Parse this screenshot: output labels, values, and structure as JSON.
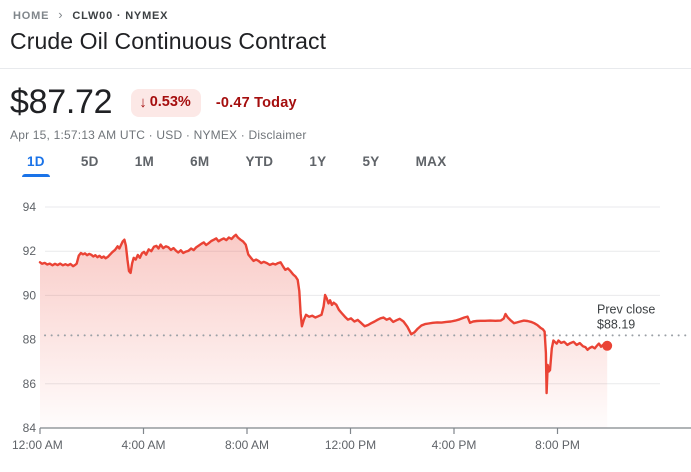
{
  "breadcrumb": {
    "home": "HOME",
    "separator": "›",
    "symbol": "CLW00 · NYMEX"
  },
  "header": {
    "title": "Crude Oil Continuous Contract"
  },
  "quote": {
    "price": "$87.72",
    "change_arrow": "↓",
    "change_percent": "0.53%",
    "change_amount": "-0.47 Today",
    "meta_text": "Apr 15, 1:57:13 AM UTC · USD · NYMEX · ",
    "disclaimer_label": "Disclaimer"
  },
  "tabs": [
    {
      "label": "1D",
      "active": true
    },
    {
      "label": "5D",
      "active": false
    },
    {
      "label": "1M",
      "active": false
    },
    {
      "label": "6M",
      "active": false
    },
    {
      "label": "YTD",
      "active": false
    },
    {
      "label": "1Y",
      "active": false
    },
    {
      "label": "5Y",
      "active": false
    },
    {
      "label": "MAX",
      "active": false
    }
  ],
  "colors": {
    "chart_line": "#ea4335",
    "accent_blue": "#1a73e8",
    "negative_red": "#a50e0e",
    "badge_bg": "#fce8e6",
    "gridline": "#e9eaec",
    "axis": "#80868b",
    "tick_text": "#5f6368",
    "annotation_text": "#3c4043",
    "dotted_line": "#9aa0a6"
  },
  "chart_data": {
    "type": "line",
    "name": "CLW00",
    "x_unit": "hours_since_midnight",
    "xlim": [
      0,
      24
    ],
    "ylim": [
      84,
      94
    ],
    "y_ticks": [
      94,
      92,
      90,
      88,
      86,
      84
    ],
    "gridline_values": [
      94,
      92,
      90,
      86
    ],
    "x_ticks": [
      {
        "hour": 0,
        "label": "12:00 AM"
      },
      {
        "hour": 4,
        "label": "4:00 AM"
      },
      {
        "hour": 8,
        "label": "8:00 AM"
      },
      {
        "hour": 12,
        "label": "12:00 PM"
      },
      {
        "hour": 16,
        "label": "4:00 PM"
      },
      {
        "hour": 20,
        "label": "8:00 PM"
      }
    ],
    "prev_close": {
      "label_line1": "Prev close",
      "label_line2": "$88.19",
      "value": 88.19
    },
    "last_price": 87.72,
    "points": [
      [
        0.0,
        91.5
      ],
      [
        0.08,
        91.43
      ],
      [
        0.18,
        91.47
      ],
      [
        0.28,
        91.4
      ],
      [
        0.38,
        91.44
      ],
      [
        0.48,
        91.36
      ],
      [
        0.58,
        91.43
      ],
      [
        0.68,
        91.37
      ],
      [
        0.78,
        91.44
      ],
      [
        0.88,
        91.36
      ],
      [
        0.98,
        91.41
      ],
      [
        1.08,
        91.36
      ],
      [
        1.18,
        91.42
      ],
      [
        1.28,
        91.32
      ],
      [
        1.36,
        91.38
      ],
      [
        1.42,
        91.44
      ],
      [
        1.5,
        91.8
      ],
      [
        1.58,
        91.92
      ],
      [
        1.66,
        91.86
      ],
      [
        1.74,
        91.9
      ],
      [
        1.82,
        91.82
      ],
      [
        1.9,
        91.88
      ],
      [
        1.98,
        91.84
      ],
      [
        2.06,
        91.76
      ],
      [
        2.14,
        91.82
      ],
      [
        2.22,
        91.73
      ],
      [
        2.3,
        91.79
      ],
      [
        2.38,
        91.7
      ],
      [
        2.46,
        91.76
      ],
      [
        2.54,
        91.68
      ],
      [
        2.62,
        91.74
      ],
      [
        2.7,
        91.84
      ],
      [
        2.8,
        91.96
      ],
      [
        2.9,
        92.06
      ],
      [
        3.0,
        92.22
      ],
      [
        3.07,
        92.12
      ],
      [
        3.14,
        92.3
      ],
      [
        3.2,
        92.45
      ],
      [
        3.26,
        92.52
      ],
      [
        3.32,
        92.25
      ],
      [
        3.38,
        91.6
      ],
      [
        3.44,
        91.1
      ],
      [
        3.5,
        91.02
      ],
      [
        3.56,
        91.45
      ],
      [
        3.62,
        91.7
      ],
      [
        3.7,
        91.62
      ],
      [
        3.78,
        91.83
      ],
      [
        3.86,
        91.7
      ],
      [
        3.94,
        91.9
      ],
      [
        4.02,
        91.97
      ],
      [
        4.1,
        91.84
      ],
      [
        4.2,
        92.08
      ],
      [
        4.3,
        92.0
      ],
      [
        4.4,
        92.2
      ],
      [
        4.5,
        92.24
      ],
      [
        4.58,
        92.12
      ],
      [
        4.66,
        92.3
      ],
      [
        4.76,
        92.14
      ],
      [
        4.86,
        92.22
      ],
      [
        4.96,
        92.18
      ],
      [
        5.06,
        92.06
      ],
      [
        5.16,
        92.14
      ],
      [
        5.26,
        92.02
      ],
      [
        5.34,
        91.94
      ],
      [
        5.44,
        92.04
      ],
      [
        5.54,
        91.92
      ],
      [
        5.64,
        91.98
      ],
      [
        5.74,
        92.02
      ],
      [
        5.84,
        92.12
      ],
      [
        5.94,
        92.05
      ],
      [
        6.04,
        92.18
      ],
      [
        6.14,
        92.26
      ],
      [
        6.24,
        92.34
      ],
      [
        6.33,
        92.4
      ],
      [
        6.42,
        92.28
      ],
      [
        6.52,
        92.36
      ],
      [
        6.62,
        92.46
      ],
      [
        6.72,
        92.52
      ],
      [
        6.81,
        92.58
      ],
      [
        6.9,
        92.45
      ],
      [
        7.0,
        92.52
      ],
      [
        7.1,
        92.58
      ],
      [
        7.2,
        92.5
      ],
      [
        7.3,
        92.62
      ],
      [
        7.4,
        92.55
      ],
      [
        7.5,
        92.68
      ],
      [
        7.57,
        92.74
      ],
      [
        7.65,
        92.62
      ],
      [
        7.75,
        92.52
      ],
      [
        7.85,
        92.44
      ],
      [
        7.95,
        92.3
      ],
      [
        8.05,
        91.85
      ],
      [
        8.15,
        91.7
      ],
      [
        8.25,
        91.56
      ],
      [
        8.35,
        91.62
      ],
      [
        8.45,
        91.56
      ],
      [
        8.55,
        91.46
      ],
      [
        8.65,
        91.52
      ],
      [
        8.77,
        91.46
      ],
      [
        8.88,
        91.38
      ],
      [
        9.0,
        91.44
      ],
      [
        9.1,
        91.4
      ],
      [
        9.2,
        91.46
      ],
      [
        9.3,
        91.5
      ],
      [
        9.4,
        91.3
      ],
      [
        9.48,
        91.16
      ],
      [
        9.58,
        91.22
      ],
      [
        9.68,
        91.1
      ],
      [
        9.78,
        90.95
      ],
      [
        9.88,
        90.85
      ],
      [
        9.96,
        90.7
      ],
      [
        10.02,
        90.2
      ],
      [
        10.07,
        89.2
      ],
      [
        10.12,
        88.6
      ],
      [
        10.2,
        88.9
      ],
      [
        10.28,
        89.12
      ],
      [
        10.4,
        89.03
      ],
      [
        10.52,
        89.08
      ],
      [
        10.64,
        89.0
      ],
      [
        10.76,
        89.06
      ],
      [
        10.88,
        89.12
      ],
      [
        10.96,
        89.5
      ],
      [
        11.02,
        90.02
      ],
      [
        11.08,
        89.87
      ],
      [
        11.15,
        89.64
      ],
      [
        11.21,
        89.78
      ],
      [
        11.28,
        89.57
      ],
      [
        11.35,
        89.67
      ],
      [
        11.45,
        89.58
      ],
      [
        11.55,
        89.35
      ],
      [
        11.66,
        89.2
      ],
      [
        11.78,
        89.04
      ],
      [
        11.9,
        88.9
      ],
      [
        12.02,
        88.96
      ],
      [
        12.15,
        88.82
      ],
      [
        12.28,
        88.89
      ],
      [
        12.42,
        88.74
      ],
      [
        12.55,
        88.6
      ],
      [
        12.68,
        88.66
      ],
      [
        12.8,
        88.74
      ],
      [
        12.93,
        88.82
      ],
      [
        13.05,
        88.9
      ],
      [
        13.15,
        88.96
      ],
      [
        13.27,
        89.0
      ],
      [
        13.4,
        88.9
      ],
      [
        13.52,
        88.96
      ],
      [
        13.65,
        88.8
      ],
      [
        13.78,
        88.88
      ],
      [
        13.9,
        88.94
      ],
      [
        14.05,
        88.82
      ],
      [
        14.2,
        88.58
      ],
      [
        14.35,
        88.24
      ],
      [
        14.48,
        88.34
      ],
      [
        14.6,
        88.5
      ],
      [
        14.74,
        88.64
      ],
      [
        14.88,
        88.7
      ],
      [
        15.02,
        88.73
      ],
      [
        15.18,
        88.76
      ],
      [
        15.35,
        88.78
      ],
      [
        15.52,
        88.77
      ],
      [
        15.7,
        88.8
      ],
      [
        15.88,
        88.82
      ],
      [
        16.05,
        88.86
      ],
      [
        16.22,
        88.92
      ],
      [
        16.4,
        89.0
      ],
      [
        16.52,
        89.04
      ],
      [
        16.62,
        88.76
      ],
      [
        16.74,
        88.82
      ],
      [
        16.88,
        88.84
      ],
      [
        17.02,
        88.85
      ],
      [
        17.2,
        88.85
      ],
      [
        17.4,
        88.86
      ],
      [
        17.6,
        88.85
      ],
      [
        17.8,
        88.86
      ],
      [
        17.92,
        88.95
      ],
      [
        17.99,
        89.16
      ],
      [
        18.08,
        89.0
      ],
      [
        18.2,
        88.86
      ],
      [
        18.32,
        88.74
      ],
      [
        18.44,
        88.78
      ],
      [
        18.56,
        88.82
      ],
      [
        18.7,
        88.86
      ],
      [
        18.84,
        88.84
      ],
      [
        18.98,
        88.8
      ],
      [
        19.1,
        88.74
      ],
      [
        19.22,
        88.66
      ],
      [
        19.34,
        88.54
      ],
      [
        19.44,
        88.46
      ],
      [
        19.5,
        88.36
      ],
      [
        19.55,
        87.4
      ],
      [
        19.58,
        85.58
      ],
      [
        19.62,
        86.85
      ],
      [
        19.66,
        86.55
      ],
      [
        19.71,
        86.62
      ],
      [
        19.78,
        87.6
      ],
      [
        19.84,
        87.96
      ],
      [
        19.9,
        87.89
      ],
      [
        19.97,
        87.82
      ],
      [
        20.04,
        87.96
      ],
      [
        20.14,
        87.85
      ],
      [
        20.26,
        87.9
      ],
      [
        20.38,
        87.76
      ],
      [
        20.5,
        87.84
      ],
      [
        20.62,
        87.9
      ],
      [
        20.74,
        87.76
      ],
      [
        20.86,
        87.84
      ],
      [
        20.98,
        87.7
      ],
      [
        21.08,
        87.66
      ],
      [
        21.16,
        87.54
      ],
      [
        21.24,
        87.62
      ],
      [
        21.34,
        87.68
      ],
      [
        21.44,
        87.6
      ],
      [
        21.52,
        87.72
      ],
      [
        21.6,
        87.82
      ],
      [
        21.68,
        87.68
      ],
      [
        21.76,
        87.76
      ],
      [
        21.84,
        87.68
      ],
      [
        21.92,
        87.72
      ]
    ]
  }
}
